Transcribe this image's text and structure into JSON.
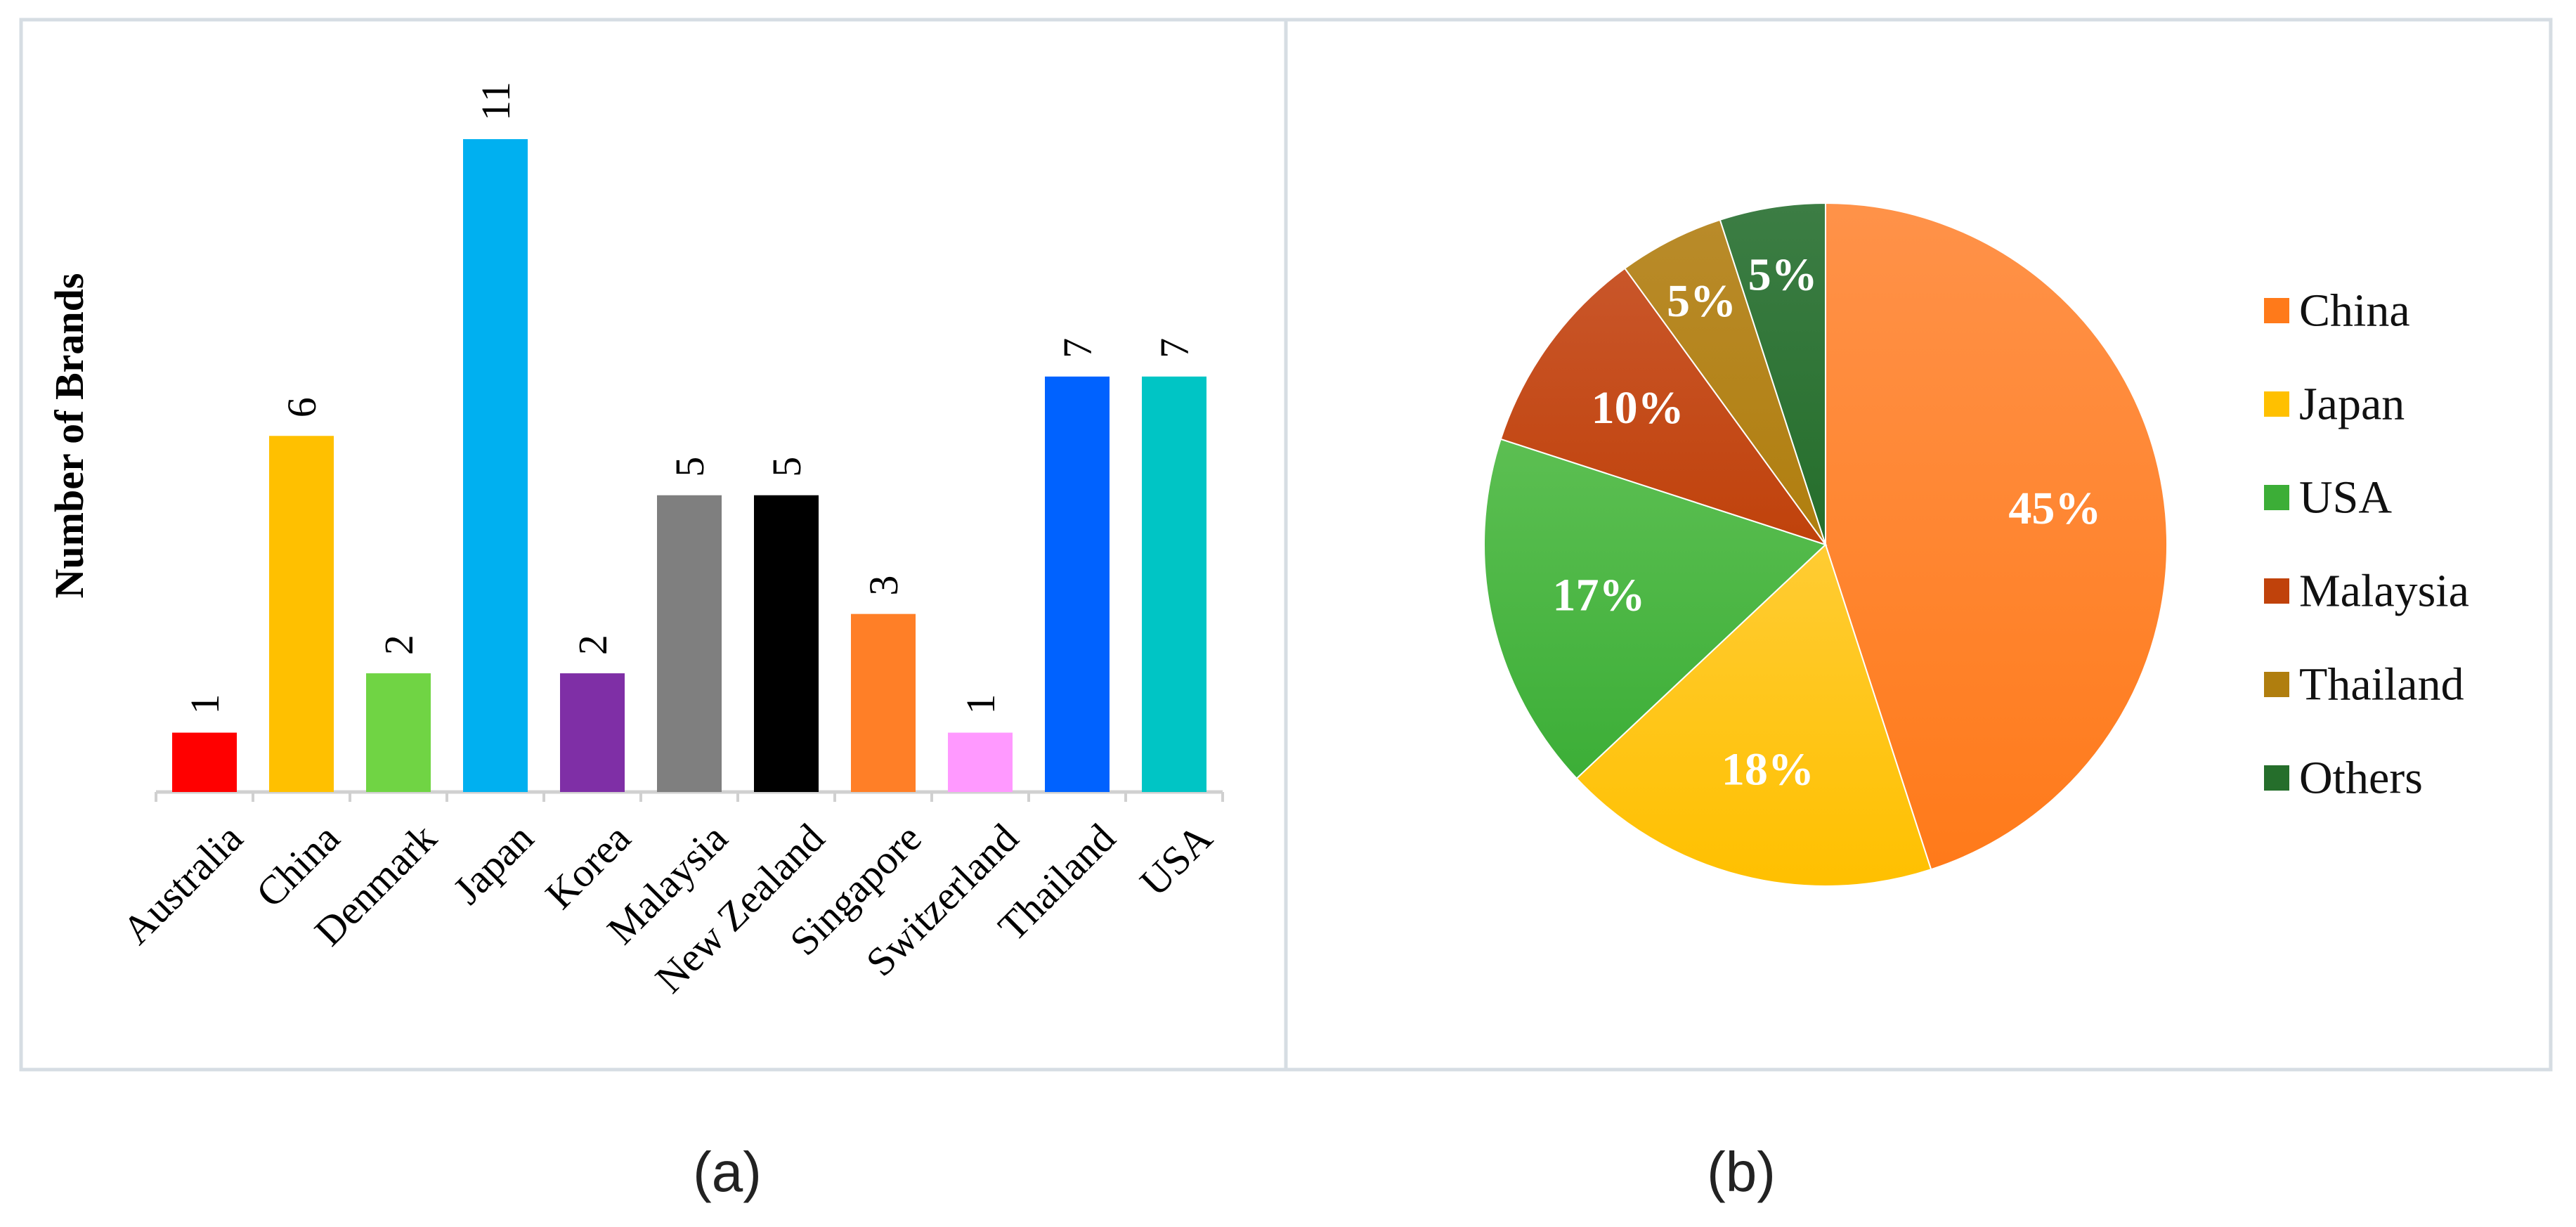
{
  "chart_data": [
    {
      "type": "bar",
      "caption": "(a)",
      "title": "",
      "xlabel": "",
      "ylabel": "Number of Brands",
      "ylim": [
        0,
        11
      ],
      "grid": false,
      "categories": [
        "Australia",
        "China",
        "Denmark",
        "Japan",
        "Korea",
        "Malaysia",
        "New Zealand",
        "Singapore",
        "Switzerland",
        "Thailand",
        "USA"
      ],
      "values": [
        1,
        6,
        2,
        11,
        2,
        5,
        5,
        3,
        1,
        7,
        7
      ],
      "colors": [
        "#ff0000",
        "#ffc000",
        "#70d444",
        "#00b0f0",
        "#7f2fa6",
        "#7f7f7f",
        "#000000",
        "#ff7f27",
        "#ff99ff",
        "#0062ff",
        "#00c5c5"
      ]
    },
    {
      "type": "pie",
      "caption": "(b)",
      "title": "",
      "legend_position": "right",
      "slices": [
        {
          "label": "China",
          "value": 45,
          "display": "45%",
          "color": "#ff7a1a",
          "color_light": "#ff9249"
        },
        {
          "label": "Japan",
          "value": 18,
          "display": "18%",
          "color": "#ffc000",
          "color_light": "#ffcc33"
        },
        {
          "label": "USA",
          "value": 17,
          "display": "17%",
          "color": "#3cae37",
          "color_light": "#5cbf52"
        },
        {
          "label": "Malaysia",
          "value": 10,
          "display": "10%",
          "color": "#c0420b",
          "color_light": "#c9562a"
        },
        {
          "label": "Thailand",
          "value": 5,
          "display": "5%",
          "color": "#b07e0e",
          "color_light": "#b98b2a"
        },
        {
          "label": "Others",
          "value": 5,
          "display": "5%",
          "color": "#256e2b",
          "color_light": "#3c7d44"
        }
      ]
    }
  ]
}
